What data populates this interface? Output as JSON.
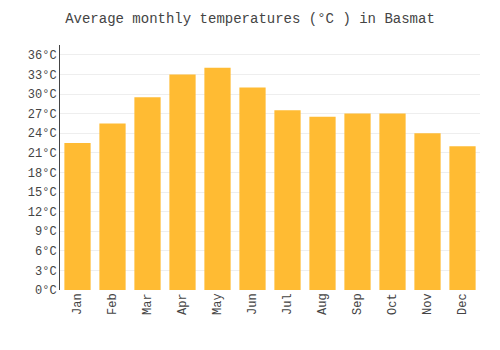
{
  "chart_data": {
    "type": "bar",
    "title": "Average monthly temperatures (°C ) in Basmat",
    "categories": [
      "Jan",
      "Feb",
      "Mar",
      "Apr",
      "May",
      "Jun",
      "Jul",
      "Aug",
      "Sep",
      "Oct",
      "Nov",
      "Dec"
    ],
    "values": [
      22.5,
      25.5,
      29.5,
      33.0,
      34.0,
      31.0,
      27.5,
      26.5,
      27.0,
      27.0,
      24.0,
      22.0
    ],
    "color": "#FFBB33",
    "ylim": [
      0,
      37.5
    ],
    "yticks": [
      {
        "value": 0,
        "label": "0°C"
      },
      {
        "value": 3,
        "label": "3°C"
      },
      {
        "value": 6,
        "label": "6°C"
      },
      {
        "value": 9,
        "label": "9°C"
      },
      {
        "value": 12,
        "label": "12°C"
      },
      {
        "value": 15,
        "label": "15°C"
      },
      {
        "value": 18,
        "label": "18°C"
      },
      {
        "value": 21,
        "label": "21°C"
      },
      {
        "value": 24,
        "label": "24°C"
      },
      {
        "value": 27,
        "label": "27°C"
      },
      {
        "value": 30,
        "label": "30°C"
      },
      {
        "value": 33,
        "label": "33°C"
      },
      {
        "value": 36,
        "label": "36°C"
      }
    ],
    "grid": true
  }
}
